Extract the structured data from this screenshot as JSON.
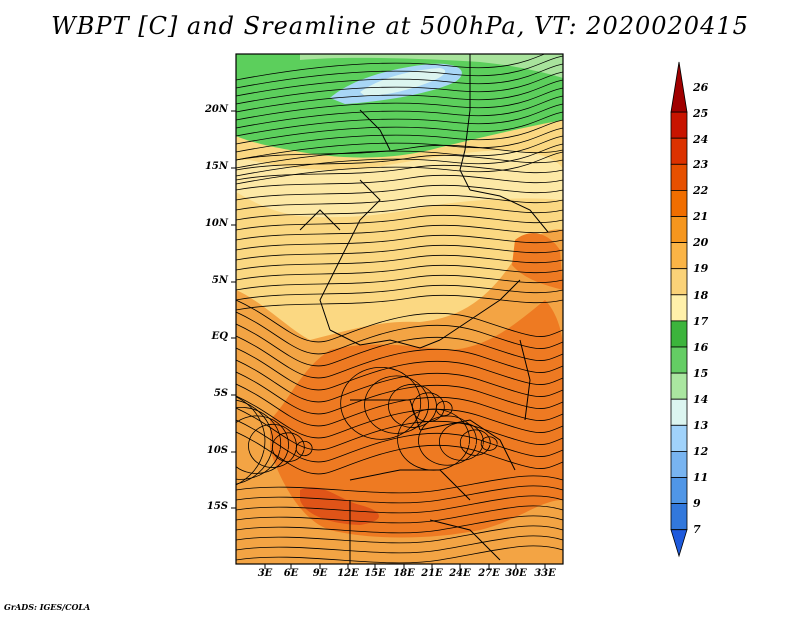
{
  "title": "WBPT [C] and Sreamline at 500hPa, VT: 2020020415",
  "footer": "GrADS: IGES/COLA",
  "map": {
    "lat_labels": [
      "20N",
      "15N",
      "10N",
      "5N",
      "EQ",
      "5S",
      "10S",
      "15S"
    ],
    "lon_labels": [
      "3E",
      "6E",
      "9E",
      "12E",
      "15E",
      "18E",
      "21E",
      "24E",
      "27E",
      "30E",
      "33E"
    ]
  },
  "colorbar": {
    "levels": [
      "26",
      "25",
      "24",
      "23",
      "22",
      "21",
      "20",
      "19",
      "18",
      "17",
      "16",
      "15",
      "14",
      "13",
      "12",
      "11",
      "9",
      "7"
    ],
    "colors": [
      "#a00000",
      "#c81400",
      "#dc3200",
      "#e65000",
      "#f06e00",
      "#f5961e",
      "#fab446",
      "#fad278",
      "#fff0aa",
      "#3cb43c",
      "#64cd64",
      "#aae6a0",
      "#dcf5f0",
      "#a0d2fa",
      "#78b4f0",
      "#5096e6",
      "#3278dc",
      "#1e5adc"
    ]
  },
  "colors": {
    "field_green": "#5ccf5c",
    "field_yellow": "#fbd882",
    "field_orange": "#f07a20",
    "field_blue": "#a8d6f6"
  }
}
